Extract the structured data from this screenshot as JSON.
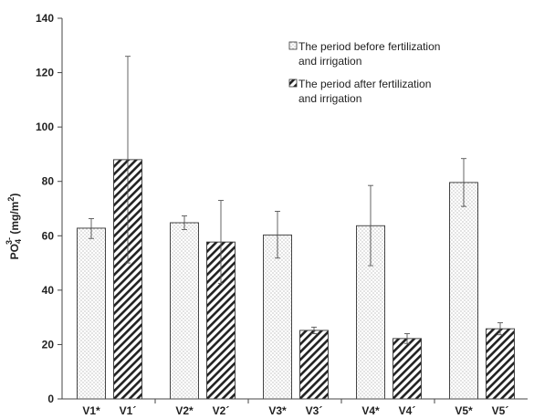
{
  "chart_data": {
    "type": "bar",
    "ylabel": {
      "base": "PO",
      "sub": "4",
      "sup": "3-",
      "unit": " (mg/m",
      "unit_sup": "2",
      "close": ")"
    },
    "ylim": [
      0,
      140
    ],
    "yticks": [
      0,
      20,
      40,
      60,
      80,
      100,
      120,
      140
    ],
    "grid": false,
    "legend_position": "top-right",
    "groups": [
      "V1",
      "V2",
      "V3",
      "V4",
      "V5"
    ],
    "bar_labels": [
      [
        "V1*",
        "V1´"
      ],
      [
        "V2*",
        "V2´"
      ],
      [
        "V3*",
        "V3´"
      ],
      [
        "V4*",
        "V4´"
      ],
      [
        "V5*",
        "V5´"
      ]
    ],
    "series": [
      {
        "name": [
          "The period before fertilization",
          "and irrigation"
        ],
        "pattern": "dotted",
        "values": [
          62.8,
          64.8,
          60.3,
          63.7,
          79.6
        ],
        "error_low": [
          59.0,
          62.3,
          51.8,
          49.0,
          70.8
        ],
        "error_high": [
          66.3,
          67.3,
          69.0,
          78.5,
          88.4
        ]
      },
      {
        "name": [
          "The period after fertilization",
          "and irrigation"
        ],
        "pattern": "hatched",
        "values": [
          88.0,
          57.7,
          25.2,
          22.2,
          25.8
        ],
        "error_low": [
          50.0,
          42.5,
          24.0,
          20.4,
          23.6
        ],
        "error_high": [
          126.0,
          73.0,
          26.4,
          24.0,
          28.0
        ]
      }
    ]
  }
}
